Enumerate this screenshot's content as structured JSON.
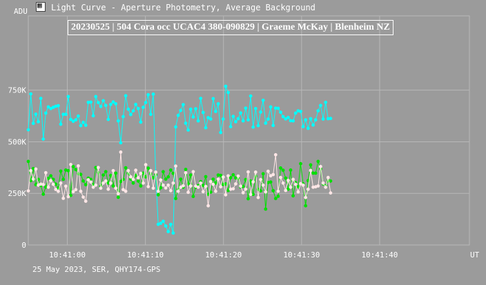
{
  "window": {
    "title": "Light Curve - Aperture Photometry, Average Background",
    "icon": "chart-app-icon"
  },
  "chart_data": {
    "type": "line",
    "title": "20230525 | 504 Cora occ UCAC4 380-090829 | Graeme McKay | Blenheim NZ",
    "footer": "25 May 2023, SER, QHY174-GPS",
    "ylabel": "ADU",
    "xlabel": "UT",
    "ylim": [
      0,
      1110000
    ],
    "xlim": [
      "10:40:55.0",
      "10:41:51.5"
    ],
    "y_ticks": [
      0,
      250000,
      500000,
      750000
    ],
    "y_tick_labels": [
      "0",
      "250K",
      "500K",
      "750K"
    ],
    "x_ticks": [
      "10:41:00",
      "10:41:10",
      "10:41:20",
      "10:41:30",
      "10:41:40"
    ],
    "grid": true,
    "frame_interval_s": 0.32,
    "x_start": "10:40:55.0",
    "series": [
      {
        "color": "#00ffff",
        "values": [
          558000,
          732000,
          589000,
          634000,
          597000,
          710000,
          513000,
          639000,
          669000,
          661000,
          667000,
          672000,
          675000,
          585000,
          633000,
          633000,
          719000,
          608000,
          599000,
          606000,
          625000,
          578000,
          594000,
          580000,
          691000,
          692000,
          626000,
          719000,
          690000,
          671000,
          699000,
          676000,
          608000,
          681000,
          693000,
          684000,
          601000,
          495000,
          622000,
          723000,
          658000,
          632000,
          650000,
          681000,
          661000,
          595000,
          667000,
          690000,
          728000,
          633000,
          731000,
          336000,
          100000,
          105000,
          115000,
          92000,
          65000,
          100000,
          58000,
          572000,
          628000,
          652000,
          680000,
          590000,
          557000,
          658000,
          620000,
          660000,
          601000,
          710000,
          642000,
          568000,
          617000,
          610000,
          709000,
          647000,
          684000,
          545000,
          610000,
          769000,
          739000,
          573000,
          623000,
          597000,
          612000,
          640000,
          601000,
          663000,
          606000,
          722000,
          571000,
          661000,
          578000,
          644000,
          701000,
          590000,
          610000,
          669000,
          579000,
          663000,
          662000,
          643000,
          622000,
          611000,
          618000,
          602000,
          601000,
          639000,
          650000,
          647000,
          573000,
          606000,
          565000,
          612000,
          581000,
          606000,
          650000,
          676000,
          610000,
          691000,
          612000,
          613000
        ]
      },
      {
        "color": "#00e000",
        "values": [
          405000,
          312000,
          370000,
          292000,
          318000,
          288000,
          246000,
          281000,
          323000,
          335000,
          318000,
          295000,
          275000,
          358000,
          318000,
          363000,
          360000,
          240000,
          380000,
          365000,
          345000,
          342000,
          310000,
          292000,
          324000,
          318000,
          290000,
          375000,
          351000,
          284000,
          339000,
          355000,
          300000,
          337000,
          286000,
          348000,
          231000,
          308000,
          318000,
          374000,
          347000,
          319000,
          300000,
          338000,
          310000,
          286000,
          348000,
          330000,
          372000,
          344000,
          325000,
          340000,
          243000,
          277000,
          355000,
          319000,
          330000,
          363000,
          347000,
          225000,
          268000,
          319000,
          280000,
          366000,
          296000,
          339000,
          235000,
          280000,
          288000,
          307000,
          288000,
          331000,
          245000,
          256000,
          319000,
          300000,
          339000,
          337000,
          293000,
          296000,
          264000,
          326000,
          340000,
          325000,
          323000,
          281000,
          284000,
          317000,
          224000,
          310000,
          245000,
          333000,
          269000,
          262000,
          345000,
          174000,
          303000,
          305000,
          263000,
          225000,
          236000,
          373000,
          362000,
          324000,
          270000,
          363000,
          238000,
          302000,
          281000,
          394000,
          296000,
          190000,
          312000,
          388000,
          348000,
          348000,
          405000,
          368000,
          296000,
          287000,
          311000,
          310000
        ]
      },
      {
        "color": "#ffe6e6",
        "values": [
          262000,
          360000,
          319000,
          368000,
          290000,
          295000,
          293000,
          350000,
          280000,
          312000,
          294000,
          269000,
          260000,
          300000,
          226000,
          285000,
          234000,
          390000,
          258000,
          268000,
          383000,
          260000,
          232000,
          212000,
          316000,
          305000,
          280000,
          290000,
          375000,
          275000,
          300000,
          310000,
          270000,
          300000,
          360000,
          275000,
          248000,
          450000,
          268000,
          260000,
          360000,
          330000,
          318000,
          362000,
          325000,
          347000,
          300000,
          389000,
          283000,
          360000,
          275000,
          353000,
          260000,
          315000,
          290000,
          276000,
          290000,
          263000,
          300000,
          382000,
          260000,
          280000,
          287000,
          350000,
          255000,
          286000,
          355000,
          285000,
          280000,
          300000,
          258000,
          284000,
          190000,
          307000,
          294000,
          260000,
          319000,
          282000,
          329000,
          243000,
          335000,
          270000,
          272000,
          296000,
          334000,
          285000,
          253000,
          270000,
          354000,
          245000,
          306000,
          353000,
          230000,
          317000,
          290000,
          257000,
          357000,
          335000,
          341000,
          437000,
          260000,
          327000,
          300000,
          264000,
          313000,
          280000,
          318000,
          294000,
          257000,
          297000,
          290000,
          230000,
          270000,
          361000,
          280000,
          282000,
          286000,
          380000,
          300000,
          280000,
          327000,
          252000
        ]
      }
    ]
  }
}
